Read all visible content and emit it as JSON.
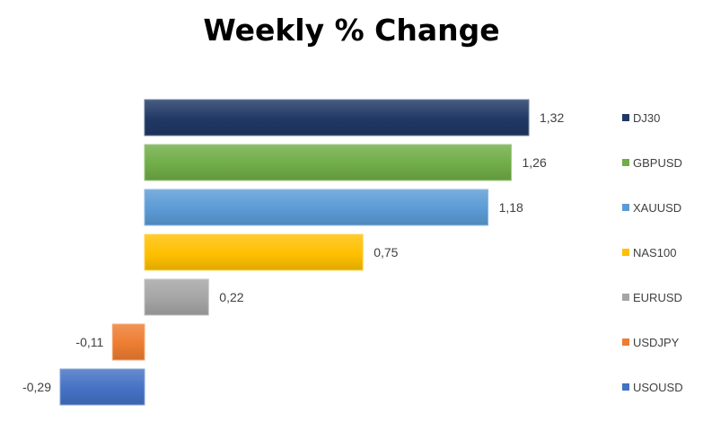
{
  "chart_data": {
    "type": "bar",
    "orientation": "horizontal",
    "title": "Weekly % Change",
    "categories": [
      "DJ30",
      "GBPUSD",
      "XAUUSD",
      "NAS100",
      "EURUSD",
      "USDJPY",
      "USOUSD"
    ],
    "values": [
      1.32,
      1.26,
      1.18,
      0.75,
      0.22,
      -0.11,
      -0.29
    ],
    "value_labels": [
      "1,32",
      "1,26",
      "1,18",
      "0,75",
      "0,22",
      "-0,11",
      "-0,29"
    ],
    "colors": [
      "#203864",
      "#70ad47",
      "#5b9bd5",
      "#ffc000",
      "#a5a5a5",
      "#ed7d31",
      "#4472c4"
    ],
    "xlim": [
      -0.5,
      1.32
    ],
    "grid": false,
    "legend_position": "right"
  }
}
